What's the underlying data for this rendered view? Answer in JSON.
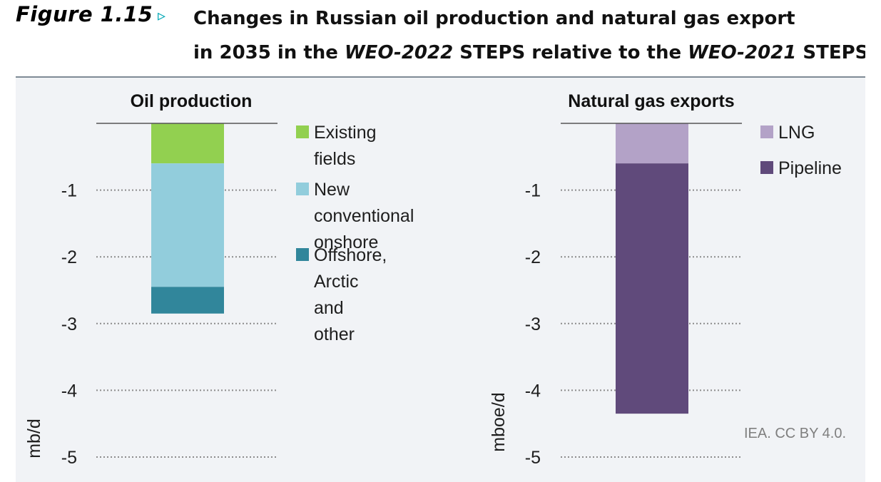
{
  "header": {
    "figure_label": "Figure 1.15",
    "arrow": "▹",
    "title_line1": "Changes in Russian oil production and natural gas export",
    "title_line2_a": "in 2035 in the ",
    "title_line2_b": "WEO-2022",
    "title_line2_c": " STEPS relative to the ",
    "title_line2_d": "WEO-2021",
    "title_line2_e": " STEPS"
  },
  "credit": "IEA. CC BY 4.0.",
  "colors": {
    "existing_fields": "#92d050",
    "new_conventional_onshore": "#92cddc",
    "offshore_arctic_other": "#31869b",
    "lng": "#b3a2c7",
    "pipeline": "#604a7b",
    "gridline": "#8c8c8c",
    "baseline": "#555555"
  },
  "chart_data": [
    {
      "type": "bar",
      "stacked": true,
      "title": "Oil production",
      "ylabel": "mb/d",
      "ylim": [
        -5,
        0
      ],
      "yticks": [
        -1,
        -2,
        -3,
        -4,
        -5
      ],
      "tick_labels": [
        "-1",
        "-2",
        "-3",
        "-4",
        "-5"
      ],
      "grid": true,
      "legend_position": "right",
      "series": [
        {
          "name": "Existing fields",
          "value": -0.6,
          "color_key": "existing_fields"
        },
        {
          "name": "New conventional\nonshore",
          "value": -1.85,
          "color_key": "new_conventional_onshore"
        },
        {
          "name": "Offshore, Arctic\nand other",
          "value": -0.4,
          "color_key": "offshore_arctic_other"
        }
      ]
    },
    {
      "type": "bar",
      "stacked": true,
      "title": "Natural gas exports",
      "ylabel": "mboe/d",
      "ylim": [
        -5,
        0
      ],
      "yticks": [
        -1,
        -2,
        -3,
        -4,
        -5
      ],
      "tick_labels": [
        "-1",
        "-2",
        "-3",
        "-4",
        "-5"
      ],
      "grid": true,
      "legend_position": "top-right",
      "series": [
        {
          "name": "LNG",
          "value": -0.6,
          "color_key": "lng"
        },
        {
          "name": "Pipeline",
          "value": -3.75,
          "color_key": "pipeline"
        }
      ]
    }
  ]
}
